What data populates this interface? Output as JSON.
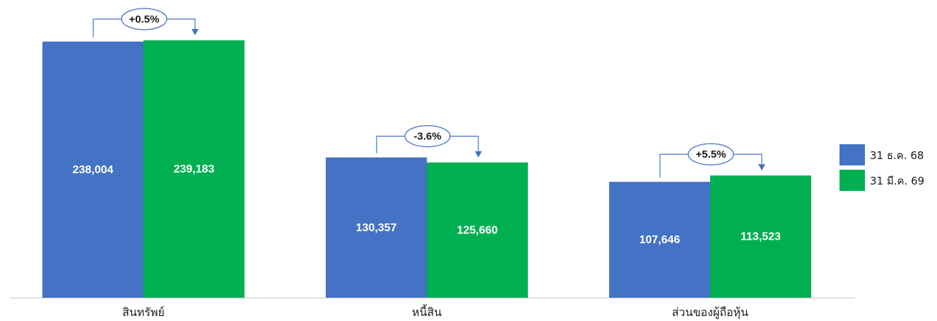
{
  "chart_data": {
    "type": "bar",
    "title": "",
    "xlabel": "",
    "ylabel": "",
    "ylim": [
      0,
      250000
    ],
    "grid": false,
    "legend_position": "right",
    "categories": [
      "สินทรัพย์",
      "หนี้สิน",
      "ส่วนของผู้ถือหุ้น"
    ],
    "series": [
      {
        "name": "31 ธ.ค. 68",
        "color": "#4472C4",
        "values": [
          238004,
          130357,
          107646
        ],
        "labels": [
          "238,004",
          "130,357",
          "107,646"
        ]
      },
      {
        "name": "31 มี.ค. 69",
        "color": "#00B050",
        "values": [
          239183,
          125660,
          113523
        ],
        "labels": [
          "239,183",
          "125,660",
          "113,523"
        ]
      }
    ],
    "annotations": [
      {
        "category": "สินทรัพย์",
        "text": "+0.5%"
      },
      {
        "category": "หนี้สิน",
        "text": "-3.6%"
      },
      {
        "category": "ส่วนของผู้ถือหุ้น",
        "text": "+5.5%"
      }
    ]
  },
  "colors": {
    "axis": "#c8c8c8",
    "arrow": "#4472C4",
    "text": "#1a1a1a",
    "bar_label": "#ffffff"
  }
}
